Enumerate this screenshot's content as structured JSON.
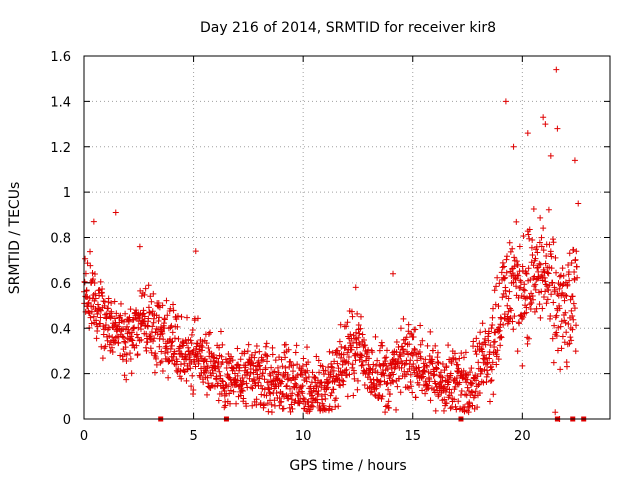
{
  "chart_data": {
    "type": "scatter",
    "title": "Day 216 of 2014, SRMTID for receiver kir8",
    "xlabel": "GPS time / hours",
    "ylabel": "SRMTID / TECUs",
    "xlim": [
      0,
      24
    ],
    "ylim": [
      0,
      1.6
    ],
    "xticks": [
      0,
      5,
      10,
      15,
      20
    ],
    "yticks": [
      0,
      0.2,
      0.4,
      0.6,
      0.8,
      1,
      1.2,
      1.4,
      1.6
    ],
    "xtick_labels": [
      "0",
      "5",
      "10",
      "15",
      "20"
    ],
    "ytick_labels": [
      "0",
      "0.2",
      "0.4",
      "0.6",
      "0.8",
      "1",
      "1.2",
      "1.4",
      "1.6"
    ],
    "grid": true,
    "marker": "+",
    "color": "#e00000",
    "series": [
      {
        "name": "SRMTID",
        "trend": [
          [
            0.0,
            0.58
          ],
          [
            0.5,
            0.5
          ],
          [
            1.0,
            0.42
          ],
          [
            1.5,
            0.4
          ],
          [
            2.0,
            0.36
          ],
          [
            2.5,
            0.45
          ],
          [
            3.0,
            0.42
          ],
          [
            3.5,
            0.4
          ],
          [
            4.0,
            0.35
          ],
          [
            4.5,
            0.3
          ],
          [
            5.0,
            0.28
          ],
          [
            5.5,
            0.27
          ],
          [
            6.0,
            0.22
          ],
          [
            6.5,
            0.18
          ],
          [
            7.0,
            0.17
          ],
          [
            7.5,
            0.17
          ],
          [
            8.0,
            0.18
          ],
          [
            8.5,
            0.16
          ],
          [
            9.0,
            0.17
          ],
          [
            9.5,
            0.16
          ],
          [
            10.0,
            0.14
          ],
          [
            10.5,
            0.1
          ],
          [
            11.0,
            0.13
          ],
          [
            11.5,
            0.2
          ],
          [
            12.0,
            0.28
          ],
          [
            12.5,
            0.33
          ],
          [
            13.0,
            0.22
          ],
          [
            13.5,
            0.2
          ],
          [
            14.0,
            0.18
          ],
          [
            14.5,
            0.25
          ],
          [
            15.0,
            0.28
          ],
          [
            15.5,
            0.22
          ],
          [
            16.0,
            0.18
          ],
          [
            16.5,
            0.16
          ],
          [
            17.0,
            0.15
          ],
          [
            17.5,
            0.17
          ],
          [
            18.0,
            0.22
          ],
          [
            18.5,
            0.32
          ],
          [
            19.0,
            0.48
          ],
          [
            19.5,
            0.6
          ],
          [
            20.0,
            0.58
          ],
          [
            20.5,
            0.62
          ],
          [
            21.0,
            0.65
          ],
          [
            21.5,
            0.5
          ],
          [
            22.0,
            0.45
          ],
          [
            22.5,
            0.55
          ]
        ],
        "outliers": [
          [
            0.45,
            0.87
          ],
          [
            1.45,
            0.91
          ],
          [
            2.55,
            0.76
          ],
          [
            5.1,
            0.74
          ],
          [
            12.4,
            0.58
          ],
          [
            14.1,
            0.64
          ],
          [
            19.25,
            1.4
          ],
          [
            19.6,
            1.2
          ],
          [
            20.25,
            1.26
          ],
          [
            20.95,
            1.33
          ],
          [
            21.05,
            1.3
          ],
          [
            21.3,
            1.16
          ],
          [
            21.55,
            1.54
          ],
          [
            21.6,
            1.28
          ],
          [
            22.4,
            1.14
          ],
          [
            22.55,
            0.95
          ],
          [
            21.5,
            0.03
          ],
          [
            21.7,
            0.0
          ]
        ],
        "gaps_at_zero": [
          3.5,
          6.5,
          17.2,
          21.6,
          22.3,
          22.8
        ]
      }
    ]
  }
}
